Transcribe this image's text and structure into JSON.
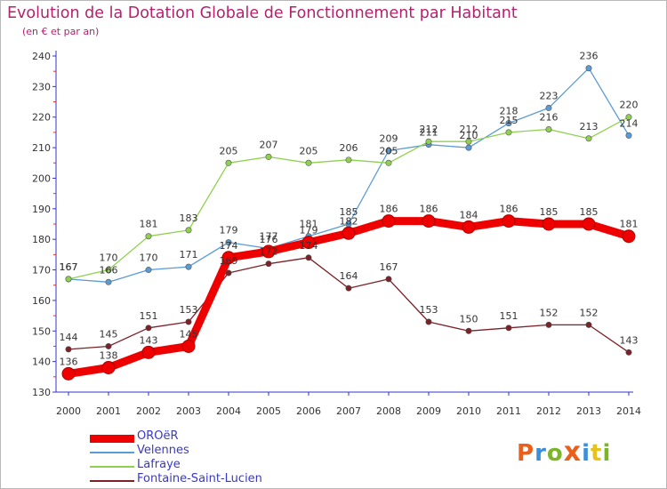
{
  "header": {
    "title": "Evolution de la Dotation Globale de Fonctionnement par Habitant",
    "subtitle": "(en € et par an)"
  },
  "logo": {
    "text": "Proxiti",
    "colors": [
      "#e8601c",
      "#3a8fd9",
      "#7cb52a",
      "#e8601c",
      "#3a8fd9",
      "#e8c21c",
      "#7cb52a"
    ]
  },
  "chart_data": {
    "type": "line",
    "x": [
      "2000",
      "2001",
      "2002",
      "2003",
      "2004",
      "2005",
      "2006",
      "2007",
      "2008",
      "2009",
      "2010",
      "2011",
      "2012",
      "2013",
      "2014"
    ],
    "ylim": [
      130,
      240
    ],
    "yticks": [
      130,
      140,
      150,
      160,
      170,
      180,
      190,
      200,
      210,
      220,
      230,
      240
    ],
    "grid": false,
    "legend_position": "bottom-left",
    "series": [
      {
        "name": "OROëR",
        "color": "#ee0000",
        "values": [
          136,
          138,
          143,
          145,
          174,
          176,
          179,
          182,
          186,
          186,
          184,
          186,
          185,
          185,
          181
        ],
        "labels": [
          "136",
          "138",
          "143",
          "145",
          "174",
          "176",
          "179",
          "182",
          "186",
          "186",
          "184",
          "186",
          "185",
          "185",
          "181"
        ]
      },
      {
        "name": "Velennes",
        "color": "#5b9bd5",
        "values": [
          167,
          166,
          170,
          171,
          179,
          177,
          181,
          185,
          209,
          211,
          210,
          218,
          223,
          236,
          214
        ],
        "labels": [
          "167",
          "166",
          "170",
          "171",
          "179",
          "177",
          "181",
          "185",
          "209",
          "211",
          "210",
          "218",
          "223",
          "236",
          "214"
        ]
      },
      {
        "name": "Lafraye",
        "color": "#8fd14f",
        "values": [
          167,
          170,
          181,
          183,
          205,
          207,
          205,
          206,
          205,
          212,
          212,
          215,
          216,
          213,
          220
        ],
        "labels": [
          "167",
          "170",
          "181",
          "183",
          "205",
          "207",
          "205",
          "206",
          "205",
          "212",
          "212",
          "215",
          "216",
          "213",
          "220"
        ]
      },
      {
        "name": "Fontaine-Saint-Lucien",
        "color": "#7b2128",
        "values": [
          144,
          145,
          151,
          153,
          169,
          172,
          174,
          164,
          167,
          153,
          150,
          151,
          152,
          152,
          143
        ],
        "labels": [
          "144",
          "145",
          "151",
          "153",
          "169",
          "172",
          "174",
          "164",
          "167",
          "153",
          "150",
          "151",
          "152",
          "152",
          "143"
        ]
      }
    ]
  }
}
